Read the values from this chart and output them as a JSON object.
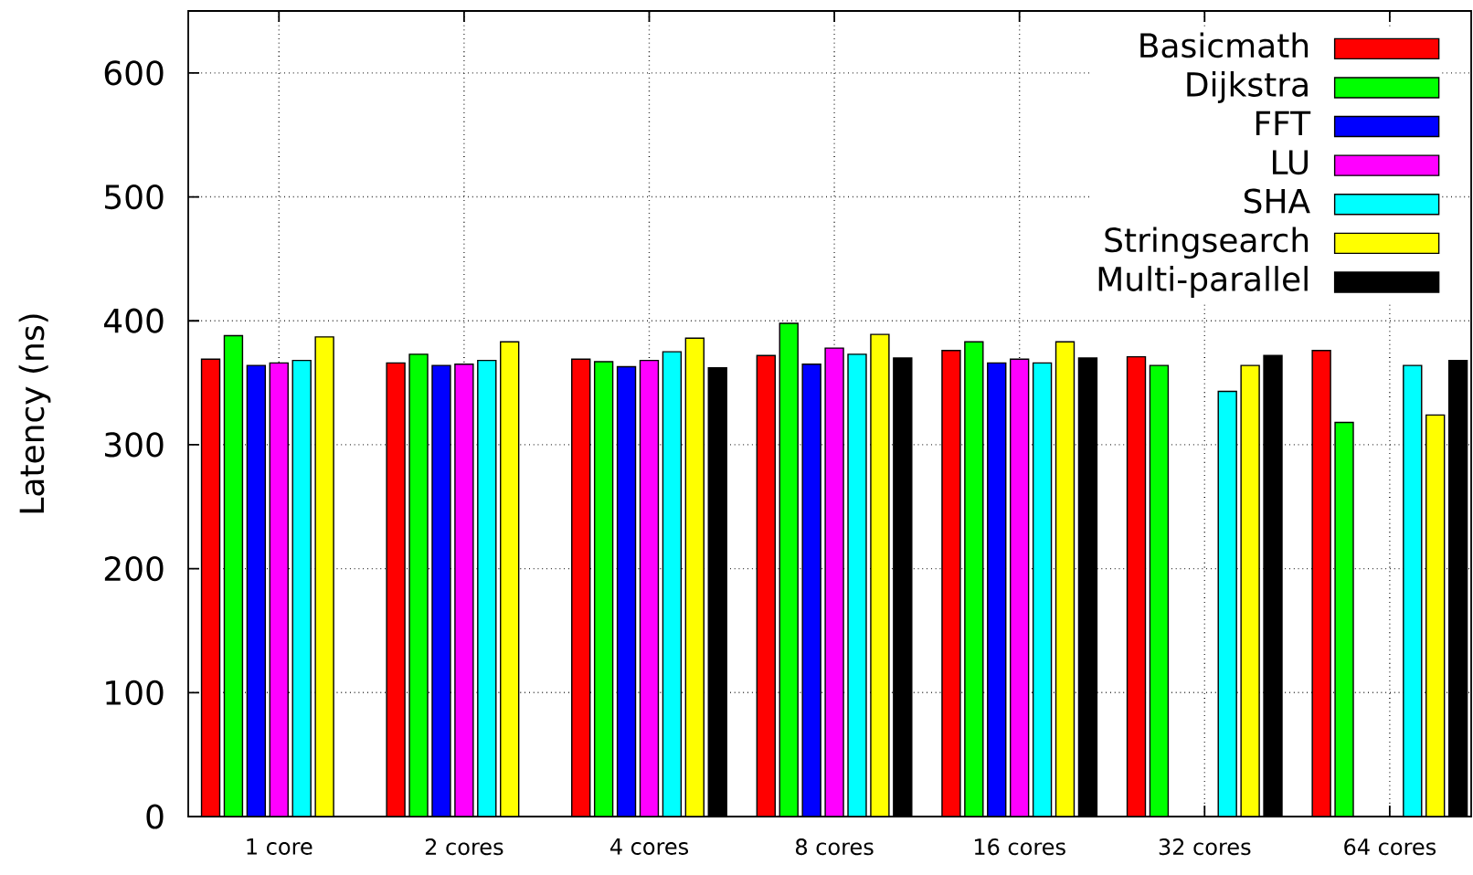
{
  "chart_data": {
    "type": "bar",
    "ylabel": "Latency (ns)",
    "categories": [
      "1 core",
      "2 cores",
      "4 cores",
      "8 cores",
      "16 cores",
      "32 cores",
      "64 cores"
    ],
    "series": [
      {
        "name": "Basicmath",
        "color": "#ff0000",
        "values": [
          369,
          366,
          369,
          372,
          376,
          371,
          376
        ]
      },
      {
        "name": "Dijkstra",
        "color": "#00ff00",
        "values": [
          388,
          373,
          367,
          398,
          383,
          364,
          318
        ]
      },
      {
        "name": "FFT",
        "color": "#0000ff",
        "values": [
          364,
          364,
          363,
          365,
          366,
          null,
          null
        ]
      },
      {
        "name": "LU",
        "color": "#ff00ff",
        "values": [
          366,
          365,
          368,
          378,
          369,
          null,
          null
        ]
      },
      {
        "name": "SHA",
        "color": "#00ffff",
        "values": [
          368,
          368,
          375,
          373,
          366,
          343,
          364
        ]
      },
      {
        "name": "Stringsearch",
        "color": "#ffff00",
        "values": [
          387,
          383,
          386,
          389,
          383,
          364,
          324
        ]
      },
      {
        "name": "Multi-parallel",
        "color": "#000000",
        "values": [
          null,
          null,
          362,
          370,
          370,
          372,
          368
        ]
      }
    ],
    "ylim": [
      0,
      650
    ],
    "yticks": [
      0,
      100,
      200,
      300,
      400,
      500,
      600
    ],
    "grid": true,
    "legend": "top right"
  }
}
